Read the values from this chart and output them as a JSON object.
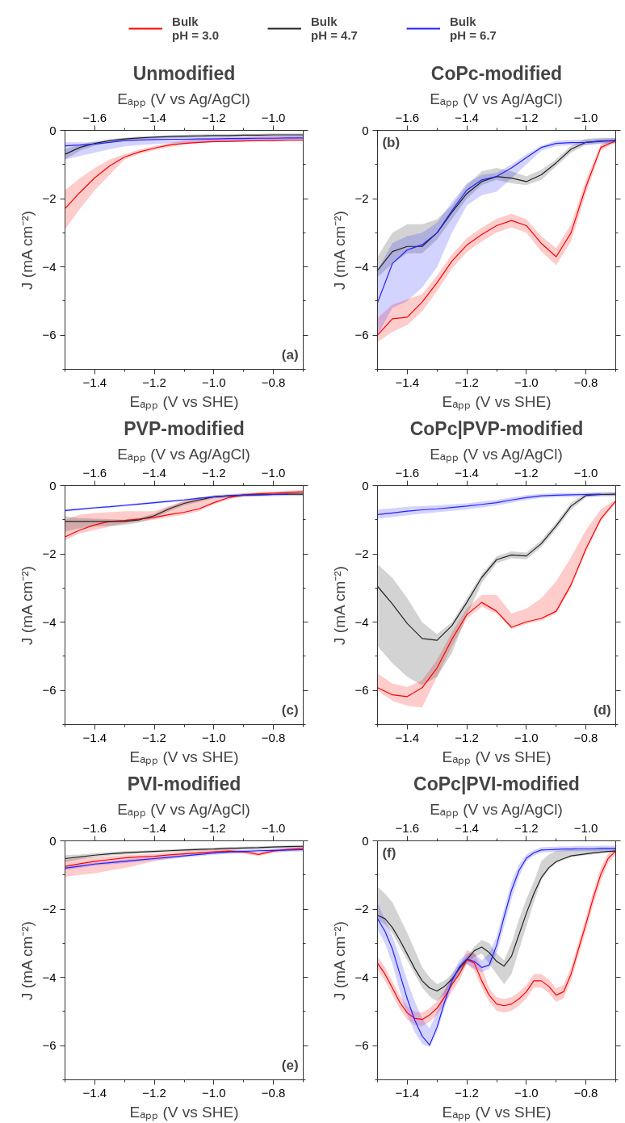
{
  "chart_data": [
    {
      "type": "line",
      "title": "Unmodified",
      "xlabel": "Eₐₚₚ (V vs SHE)",
      "x2label": "Eₐₚₚ (V vs Ag/AgCl)",
      "ylabel": "J (mA cm⁻²)",
      "annotations": [
        "(a)"
      ],
      "legend": "top",
      "xlim": [
        -1.5,
        -0.7
      ],
      "xticks": [
        {
          "value": -1.4,
          "label": "−1.4"
        },
        {
          "value": -1.2,
          "label": "−1.2"
        },
        {
          "value": -1.0,
          "label": "−1.0"
        },
        {
          "value": -0.8,
          "label": "−0.8"
        }
      ],
      "x2lim": [
        -1.7,
        -0.9
      ],
      "x2ticks": [
        {
          "value": -1.6,
          "label": "−1.6"
        },
        {
          "value": -1.4,
          "label": "−1.4"
        },
        {
          "value": -1.2,
          "label": "−1.2"
        },
        {
          "value": -1.0,
          "label": "−1.0"
        }
      ],
      "ylim": [
        -7,
        0
      ],
      "yticks": [
        {
          "value": -6,
          "label": "−6"
        },
        {
          "value": -4,
          "label": "−4"
        },
        {
          "value": -2,
          "label": "−2"
        },
        0
      ],
      "x": [
        -1.5,
        -1.45,
        -1.4,
        -1.35,
        -1.3,
        -1.25,
        -1.2,
        -1.15,
        -1.1,
        -1.05,
        -1.0,
        -0.95,
        -0.9,
        -0.85,
        -0.8,
        -0.75,
        -0.7
      ],
      "series": [
        {
          "name": "Bulk\npH = 3.0",
          "color": "#ff0000",
          "values": [
            -2.29,
            -1.82,
            -1.39,
            -1.04,
            -0.78,
            -0.63,
            -0.52,
            -0.43,
            -0.38,
            -0.35,
            -0.33,
            -0.32,
            -0.31,
            -0.3,
            -0.3,
            -0.29,
            -0.29
          ],
          "lower": [
            -2.9,
            -2.3,
            -1.75,
            -1.3,
            -0.85,
            -0.7,
            -0.58,
            -0.49,
            -0.42,
            -0.37,
            -0.34,
            -0.33,
            -0.32,
            -0.31,
            -0.3,
            -0.3,
            -0.29
          ],
          "upper": [
            -1.75,
            -1.4,
            -1.1,
            -0.85,
            -0.7,
            -0.56,
            -0.46,
            -0.37,
            -0.3,
            -0.25,
            -0.22,
            -0.21,
            -0.2,
            -0.19,
            -0.18,
            -0.18,
            -0.17
          ]
        },
        {
          "name": "Bulk\npH = 4.7",
          "color": "#222222",
          "values": [
            -0.7,
            -0.5,
            -0.38,
            -0.3,
            -0.25,
            -0.22,
            -0.2,
            -0.18,
            -0.17,
            -0.16,
            -0.15,
            -0.15,
            -0.14,
            -0.14,
            -0.13,
            -0.13,
            -0.13
          ],
          "lower": [
            -0.85,
            -0.6,
            -0.45,
            -0.35,
            -0.3,
            -0.26,
            -0.24,
            -0.22,
            -0.21,
            -0.2,
            -0.19,
            -0.19,
            -0.18,
            -0.18,
            -0.17,
            -0.17,
            -0.17
          ],
          "upper": [
            -0.55,
            -0.42,
            -0.32,
            -0.26,
            -0.21,
            -0.18,
            -0.16,
            -0.14,
            -0.13,
            -0.12,
            -0.11,
            -0.11,
            -0.1,
            -0.1,
            -0.09,
            -0.09,
            -0.09
          ]
        },
        {
          "name": "Bulk\npH = 6.7",
          "color": "#2222ff",
          "values": [
            -0.45,
            -0.43,
            -0.4,
            -0.35,
            -0.3,
            -0.28,
            -0.27,
            -0.26,
            -0.26,
            -0.25,
            -0.25,
            -0.24,
            -0.24,
            -0.23,
            -0.23,
            -0.22,
            -0.22
          ],
          "lower": [
            -0.85,
            -0.75,
            -0.65,
            -0.55,
            -0.47,
            -0.43,
            -0.4,
            -0.38,
            -0.37,
            -0.36,
            -0.35,
            -0.34,
            -0.33,
            -0.32,
            -0.31,
            -0.3,
            -0.3
          ],
          "upper": [
            -0.35,
            -0.35,
            -0.35,
            -0.3,
            -0.25,
            -0.22,
            -0.2,
            -0.19,
            -0.18,
            -0.18,
            -0.18,
            -0.17,
            -0.17,
            -0.16,
            -0.16,
            -0.15,
            -0.15
          ]
        }
      ]
    },
    {
      "type": "line",
      "title": "CoPc-modified",
      "xlabel": "Eₐₚₚ (V vs SHE)",
      "x2label": "Eₐₚₚ (V vs Ag/AgCl)",
      "ylabel": "J (mA cm⁻²)",
      "annotations": [
        "(b)"
      ],
      "xlim": [
        -1.5,
        -0.7
      ],
      "xticks": [
        {
          "value": -1.4,
          "label": "−1.4"
        },
        {
          "value": -1.2,
          "label": "−1.2"
        },
        {
          "value": -1.0,
          "label": "−1.0"
        },
        {
          "value": -0.8,
          "label": "−0.8"
        }
      ],
      "x2lim": [
        -1.7,
        -0.9
      ],
      "x2ticks": [
        {
          "value": -1.6,
          "label": "−1.6"
        },
        {
          "value": -1.4,
          "label": "−1.4"
        },
        {
          "value": -1.2,
          "label": "−1.2"
        },
        {
          "value": -1.0,
          "label": "−1.0"
        }
      ],
      "ylim": [
        -7,
        0
      ],
      "yticks": [
        {
          "value": -6,
          "label": "−6"
        },
        {
          "value": -4,
          "label": "−4"
        },
        {
          "value": -2,
          "label": "−2"
        },
        0
      ],
      "x": [
        -1.5,
        -1.45,
        -1.4,
        -1.35,
        -1.3,
        -1.25,
        -1.2,
        -1.15,
        -1.1,
        -1.05,
        -1.0,
        -0.95,
        -0.9,
        -0.85,
        -0.8,
        -0.75,
        -0.7
      ],
      "series": [
        {
          "color": "#ff0000",
          "values": [
            -6.0,
            -5.52,
            -5.47,
            -5.03,
            -4.46,
            -3.83,
            -3.36,
            -3.05,
            -2.79,
            -2.64,
            -2.79,
            -3.31,
            -3.7,
            -3.0,
            -1.65,
            -0.5,
            -0.3
          ],
          "lower": [
            -6.2,
            -5.9,
            -5.7,
            -5.3,
            -4.7,
            -4.05,
            -3.56,
            -3.25,
            -2.99,
            -2.84,
            -3.0,
            -3.55,
            -3.95,
            -3.25,
            -1.85,
            -0.6,
            -0.35
          ],
          "upper": [
            -5.5,
            -5.1,
            -4.95,
            -4.8,
            -4.25,
            -3.63,
            -3.16,
            -2.85,
            -2.59,
            -2.44,
            -2.6,
            -3.1,
            -3.45,
            -2.75,
            -1.45,
            -0.4,
            -0.25
          ]
        },
        {
          "color": "#222222",
          "values": [
            -4.1,
            -3.55,
            -3.4,
            -3.4,
            -3.0,
            -2.4,
            -1.85,
            -1.5,
            -1.35,
            -1.4,
            -1.5,
            -1.3,
            -0.95,
            -0.55,
            -0.35,
            -0.31,
            -0.3
          ],
          "lower": [
            -4.3,
            -3.9,
            -3.6,
            -3.6,
            -3.2,
            -2.6,
            -2.0,
            -1.6,
            -1.45,
            -1.55,
            -1.6,
            -1.45,
            -1.05,
            -0.65,
            -0.42,
            -0.38,
            -0.37
          ],
          "upper": [
            -3.7,
            -3.0,
            -2.75,
            -2.75,
            -2.6,
            -2.2,
            -1.6,
            -1.2,
            -1.1,
            -1.2,
            -1.35,
            -1.15,
            -0.85,
            -0.45,
            -0.25,
            -0.22,
            -0.22
          ]
        },
        {
          "color": "#2222ff",
          "values": [
            -5.05,
            -3.9,
            -3.5,
            -3.35,
            -3.0,
            -2.35,
            -1.75,
            -1.45,
            -1.35,
            -1.1,
            -0.8,
            -0.5,
            -0.38,
            -0.36,
            -0.35,
            -0.32,
            -0.3
          ],
          "lower": [
            -6.0,
            -5.2,
            -5.0,
            -4.6,
            -4.0,
            -3.0,
            -2.2,
            -1.9,
            -1.8,
            -1.4,
            -1.0,
            -0.6,
            -0.46,
            -0.44,
            -0.43,
            -0.4,
            -0.38
          ],
          "upper": [
            -4.1,
            -3.3,
            -3.1,
            -3.0,
            -2.7,
            -2.1,
            -1.55,
            -1.3,
            -1.25,
            -1.0,
            -0.7,
            -0.45,
            -0.3,
            -0.28,
            -0.27,
            -0.24,
            -0.22
          ]
        }
      ]
    },
    {
      "type": "line",
      "title": "PVP-modified",
      "xlabel": "Eₐₚₚ (V vs SHE)",
      "x2label": "Eₐₚₚ (V vs Ag/AgCl)",
      "ylabel": "J (mA cm⁻²)",
      "annotations": [
        "(c)"
      ],
      "xlim": [
        -1.5,
        -0.7
      ],
      "xticks": [
        {
          "value": -1.4,
          "label": "−1.4"
        },
        {
          "value": -1.2,
          "label": "−1.2"
        },
        {
          "value": -1.0,
          "label": "−1.0"
        },
        {
          "value": -0.8,
          "label": "−0.8"
        }
      ],
      "x2lim": [
        -1.7,
        -0.9
      ],
      "x2ticks": [
        {
          "value": -1.6,
          "label": "−1.6"
        },
        {
          "value": -1.4,
          "label": "−1.4"
        },
        {
          "value": -1.2,
          "label": "−1.2"
        },
        {
          "value": -1.0,
          "label": "−1.0"
        }
      ],
      "ylim": [
        -7,
        0
      ],
      "yticks": [
        {
          "value": -6,
          "label": "−6"
        },
        {
          "value": -4,
          "label": "−4"
        },
        {
          "value": -2,
          "label": "−2"
        },
        0
      ],
      "x": [
        -1.5,
        -1.45,
        -1.4,
        -1.35,
        -1.3,
        -1.25,
        -1.2,
        -1.15,
        -1.1,
        -1.05,
        -1.0,
        -0.95,
        -0.9,
        -0.85,
        -0.8,
        -0.75,
        -0.7
      ],
      "series": [
        {
          "color": "#ff0000",
          "values": [
            -1.5,
            -1.3,
            -1.15,
            -1.05,
            -1.02,
            -0.98,
            -0.93,
            -0.85,
            -0.78,
            -0.68,
            -0.5,
            -0.35,
            -0.27,
            -0.24,
            -0.22,
            -0.2,
            -0.18
          ],
          "lower": [
            -1.6,
            -1.4,
            -1.3,
            -1.2,
            -1.1,
            -1.05,
            -1.0,
            -0.92,
            -0.85,
            -0.75,
            -0.55,
            -0.4,
            -0.32,
            -0.29,
            -0.27,
            -0.25,
            -0.23
          ],
          "upper": [
            -1.0,
            -0.85,
            -0.8,
            -0.78,
            -0.75,
            -0.75,
            -0.75,
            -0.6,
            -0.45,
            -0.35,
            -0.3,
            -0.28,
            -0.22,
            -0.19,
            -0.17,
            -0.15,
            -0.13
          ]
        },
        {
          "color": "#222222",
          "values": [
            -1.05,
            -1.05,
            -1.05,
            -1.05,
            -1.05,
            -1.0,
            -0.88,
            -0.68,
            -0.52,
            -0.42,
            -0.33,
            -0.3,
            -0.28,
            -0.27,
            -0.26,
            -0.25,
            -0.25
          ],
          "lower": [
            -1.35,
            -1.25,
            -1.2,
            -1.18,
            -1.15,
            -1.08,
            -0.95,
            -0.75,
            -0.58,
            -0.48,
            -0.38,
            -0.35,
            -0.33,
            -0.32,
            -0.31,
            -0.3,
            -0.3
          ],
          "upper": [
            -0.9,
            -0.95,
            -0.97,
            -0.98,
            -1.0,
            -0.94,
            -0.82,
            -0.62,
            -0.46,
            -0.37,
            -0.28,
            -0.25,
            -0.23,
            -0.22,
            -0.21,
            -0.2,
            -0.2
          ]
        },
        {
          "color": "#2222ff",
          "values": [
            -0.73,
            -0.69,
            -0.65,
            -0.62,
            -0.58,
            -0.54,
            -0.5,
            -0.46,
            -0.42,
            -0.37,
            -0.33,
            -0.3,
            -0.28,
            -0.27,
            -0.26,
            -0.25,
            null
          ],
          "lower": [
            -0.76,
            -0.72,
            -0.68,
            -0.65,
            -0.61,
            -0.57,
            -0.53,
            -0.49,
            -0.45,
            -0.4,
            -0.36,
            -0.33,
            -0.31,
            -0.3,
            -0.29,
            -0.28,
            -0.28
          ],
          "upper": [
            -0.7,
            -0.66,
            -0.62,
            -0.59,
            -0.55,
            -0.51,
            -0.47,
            -0.43,
            -0.39,
            -0.34,
            -0.3,
            -0.27,
            -0.25,
            -0.24,
            -0.23,
            -0.22,
            -0.22
          ]
        }
      ]
    },
    {
      "type": "line",
      "title": "CoPc|PVP-modified",
      "xlabel": "Eₐₚₚ (V vs SHE)",
      "x2label": "Eₐₚₚ (V vs Ag/AgCl)",
      "ylabel": "J (mA cm⁻²)",
      "annotations": [
        "(d)"
      ],
      "xlim": [
        -1.5,
        -0.7
      ],
      "xticks": [
        {
          "value": -1.4,
          "label": "−1.4"
        },
        {
          "value": -1.2,
          "label": "−1.2"
        },
        {
          "value": -1.0,
          "label": "−1.0"
        },
        {
          "value": -0.8,
          "label": "−0.8"
        }
      ],
      "x2lim": [
        -1.7,
        -0.9
      ],
      "x2ticks": [
        {
          "value": -1.6,
          "label": "−1.6"
        },
        {
          "value": -1.4,
          "label": "−1.4"
        },
        {
          "value": -1.2,
          "label": "−1.2"
        },
        {
          "value": -1.0,
          "label": "−1.0"
        }
      ],
      "ylim": [
        -7,
        0
      ],
      "yticks": [
        {
          "value": -6,
          "label": "−6"
        },
        {
          "value": -4,
          "label": "−4"
        },
        {
          "value": -2,
          "label": "−2"
        },
        0
      ],
      "x": [
        -1.5,
        -1.45,
        -1.4,
        -1.35,
        -1.3,
        -1.25,
        -1.2,
        -1.15,
        -1.1,
        -1.05,
        -1.0,
        -0.95,
        -0.9,
        -0.85,
        -0.8,
        -0.75,
        -0.7
      ],
      "series": [
        {
          "color": "#ff0000",
          "values": [
            -5.92,
            -6.13,
            -6.18,
            -5.92,
            -5.34,
            -4.5,
            -3.78,
            -3.42,
            -3.68,
            -4.15,
            -3.99,
            -3.89,
            -3.68,
            -2.9,
            -1.85,
            -0.97,
            -0.45
          ],
          "lower": [
            -6.0,
            -6.3,
            -6.45,
            -6.5,
            -5.6,
            -4.7,
            -3.9,
            -3.55,
            -3.75,
            -4.2,
            -4.05,
            -3.95,
            -3.75,
            -3.0,
            -1.95,
            -1.05,
            -0.5
          ],
          "upper": [
            -5.5,
            -5.8,
            -5.9,
            -5.7,
            -5.1,
            -4.3,
            -3.6,
            -3.2,
            -3.2,
            -3.75,
            -3.6,
            -3.3,
            -2.8,
            -2.1,
            -1.3,
            -0.7,
            -0.4
          ]
        },
        {
          "color": "#222222",
          "values": [
            -2.95,
            -3.47,
            -4.04,
            -4.48,
            -4.53,
            -4.1,
            -3.42,
            -2.69,
            -2.17,
            -2.03,
            -2.06,
            -1.7,
            -1.18,
            -0.6,
            -0.29,
            -0.26,
            -0.25
          ],
          "lower": [
            -4.7,
            -5.2,
            -5.6,
            -5.85,
            -5.6,
            -4.9,
            -3.8,
            -2.85,
            -2.27,
            -2.13,
            -2.16,
            -1.8,
            -1.28,
            -0.7,
            -0.35,
            -0.31,
            -0.3
          ],
          "upper": [
            -2.3,
            -2.7,
            -3.3,
            -4.0,
            -4.35,
            -4.0,
            -3.3,
            -2.6,
            -2.07,
            -1.93,
            -1.96,
            -1.6,
            -1.08,
            -0.5,
            -0.23,
            -0.21,
            -0.2
          ]
        },
        {
          "color": "#2222ff",
          "values": [
            -0.85,
            -0.8,
            -0.75,
            -0.71,
            -0.68,
            -0.64,
            -0.6,
            -0.55,
            -0.5,
            -0.42,
            -0.35,
            -0.3,
            -0.28,
            -0.27,
            -0.26,
            -0.25,
            null
          ],
          "lower": [
            -0.97,
            -0.92,
            -0.87,
            -0.82,
            -0.78,
            -0.74,
            -0.7,
            -0.64,
            -0.58,
            -0.5,
            -0.42,
            -0.36,
            -0.34,
            -0.33,
            -0.32,
            -0.31,
            -0.31
          ],
          "upper": [
            -0.7,
            -0.66,
            -0.62,
            -0.6,
            -0.58,
            -0.55,
            -0.52,
            -0.47,
            -0.42,
            -0.34,
            -0.28,
            -0.24,
            -0.22,
            -0.21,
            -0.2,
            -0.19,
            -0.19
          ]
        }
      ]
    },
    {
      "type": "line",
      "title": "PVI-modified",
      "xlabel": "Eₐₚₚ (V vs SHE)",
      "x2label": "Eₐₚₚ (V vs Ag/AgCl)",
      "ylabel": "J (mA cm⁻²)",
      "annotations": [
        "(e)"
      ],
      "xlim": [
        -1.5,
        -0.7
      ],
      "xticks": [
        {
          "value": -1.4,
          "label": "−1.4"
        },
        {
          "value": -1.2,
          "label": "−1.2"
        },
        {
          "value": -1.0,
          "label": "−1.0"
        },
        {
          "value": -0.8,
          "label": "−0.8"
        }
      ],
      "x2lim": [
        -1.7,
        -0.9
      ],
      "x2ticks": [
        {
          "value": -1.6,
          "label": "−1.6"
        },
        {
          "value": -1.4,
          "label": "−1.4"
        },
        {
          "value": -1.2,
          "label": "−1.2"
        },
        {
          "value": -1.0,
          "label": "−1.0"
        }
      ],
      "ylim": [
        -7,
        0
      ],
      "yticks": [
        {
          "value": -6,
          "label": "−6"
        },
        {
          "value": -4,
          "label": "−4"
        },
        {
          "value": -2,
          "label": "−2"
        },
        0
      ],
      "x": [
        -1.5,
        -1.45,
        -1.4,
        -1.35,
        -1.3,
        -1.25,
        -1.2,
        -1.15,
        -1.1,
        -1.05,
        -1.0,
        -0.95,
        -0.9,
        -0.85,
        -0.8,
        -0.75,
        -0.7
      ],
      "series": [
        {
          "color": "#ff0000",
          "values": [
            -0.75,
            -0.67,
            -0.6,
            -0.55,
            -0.5,
            -0.47,
            -0.45,
            -0.41,
            -0.38,
            -0.35,
            -0.32,
            -0.3,
            -0.32,
            -0.4,
            -0.3,
            -0.25,
            -0.22
          ],
          "lower": [
            -1.05,
            -1.0,
            -0.95,
            -0.87,
            -0.8,
            -0.7,
            -0.6,
            -0.52,
            -0.45,
            -0.4,
            -0.37,
            -0.35,
            -0.37,
            -0.45,
            -0.35,
            -0.3,
            -0.27
          ],
          "upper": [
            -0.55,
            -0.5,
            -0.48,
            -0.45,
            -0.42,
            -0.4,
            -0.38,
            -0.34,
            -0.3,
            -0.28,
            -0.26,
            -0.25,
            -0.27,
            -0.35,
            -0.25,
            -0.2,
            -0.17
          ]
        },
        {
          "color": "#222222",
          "values": [
            -0.52,
            -0.47,
            -0.42,
            -0.38,
            -0.35,
            -0.33,
            -0.31,
            -0.29,
            -0.27,
            -0.25,
            -0.24,
            -0.22,
            -0.21,
            -0.2,
            -0.18,
            -0.17,
            -0.16
          ],
          "lower": [
            -0.62,
            -0.54,
            -0.48,
            -0.43,
            -0.4,
            -0.37,
            -0.35,
            -0.33,
            -0.31,
            -0.29,
            -0.28,
            -0.26,
            -0.25,
            -0.24,
            -0.22,
            -0.21,
            -0.2
          ],
          "upper": [
            -0.42,
            -0.4,
            -0.36,
            -0.33,
            -0.3,
            -0.29,
            -0.27,
            -0.25,
            -0.23,
            -0.21,
            -0.2,
            -0.18,
            -0.17,
            -0.16,
            -0.14,
            -0.13,
            -0.12
          ]
        },
        {
          "color": "#2222ff",
          "values": [
            -0.8,
            -0.74,
            -0.68,
            -0.64,
            -0.6,
            -0.56,
            -0.52,
            -0.48,
            -0.44,
            -0.4,
            -0.36,
            -0.33,
            -0.31,
            -0.29,
            -0.28,
            -0.27,
            -0.26
          ],
          "lower": [
            -0.85,
            -0.79,
            -0.73,
            -0.69,
            -0.65,
            -0.61,
            -0.57,
            -0.53,
            -0.49,
            -0.45,
            -0.41,
            -0.38,
            -0.36,
            -0.34,
            -0.33,
            -0.32,
            -0.31
          ],
          "upper": [
            -0.75,
            -0.69,
            -0.63,
            -0.59,
            -0.55,
            -0.51,
            -0.47,
            -0.43,
            -0.39,
            -0.35,
            -0.31,
            -0.28,
            -0.26,
            -0.24,
            -0.23,
            -0.22,
            -0.21
          ]
        }
      ]
    },
    {
      "type": "line",
      "title": "CoPc|PVI-modified",
      "xlabel": "Eₐₚₚ (V vs SHE)",
      "x2label": "Eₐₚₚ (V vs Ag/AgCl)",
      "ylabel": "J (mA cm⁻²)",
      "annotations": [
        "(f)"
      ],
      "xlim": [
        -1.5,
        -0.7
      ],
      "xticks": [
        {
          "value": -1.4,
          "label": "−1.4"
        },
        {
          "value": -1.2,
          "label": "−1.2"
        },
        {
          "value": -1.0,
          "label": "−1.0"
        },
        {
          "value": -0.8,
          "label": "−0.8"
        }
      ],
      "x2lim": [
        -1.7,
        -0.9
      ],
      "x2ticks": [
        {
          "value": -1.6,
          "label": "−1.6"
        },
        {
          "value": -1.4,
          "label": "−1.4"
        },
        {
          "value": -1.2,
          "label": "−1.2"
        },
        {
          "value": -1.0,
          "label": "−1.0"
        }
      ],
      "ylim": [
        -7,
        0
      ],
      "yticks": [
        {
          "value": -6,
          "label": "−6"
        },
        {
          "value": -4,
          "label": "−4"
        },
        {
          "value": -2,
          "label": "−2"
        },
        0
      ],
      "x": [
        -1.5,
        -1.475,
        -1.45,
        -1.425,
        -1.4,
        -1.375,
        -1.35,
        -1.325,
        -1.3,
        -1.275,
        -1.25,
        -1.225,
        -1.2,
        -1.175,
        -1.15,
        -1.125,
        -1.1,
        -1.075,
        -1.05,
        -1.025,
        -1.0,
        -0.975,
        -0.95,
        -0.925,
        -0.9,
        -0.875,
        -0.85,
        -0.825,
        -0.8,
        -0.775,
        -0.75,
        -0.725,
        -0.7
      ],
      "series": [
        {
          "color": "#ff0000",
          "values": [
            -3.58,
            -3.9,
            -4.31,
            -4.73,
            -5.04,
            -5.2,
            -5.23,
            -5.1,
            -4.9,
            -4.58,
            -4.21,
            -3.9,
            -3.48,
            -3.58,
            -4.1,
            -4.52,
            -4.78,
            -4.83,
            -4.78,
            -4.63,
            -4.42,
            -4.1,
            -4.1,
            -4.26,
            -4.52,
            -4.42,
            -3.9,
            -3.17,
            -2.44,
            -1.66,
            -0.98,
            -0.51,
            -0.3
          ],
          "lower": [
            -3.78,
            -4.1,
            -4.51,
            -4.93,
            -5.24,
            -5.4,
            -5.43,
            -5.3,
            -5.1,
            -4.78,
            -4.41,
            -4.1,
            -3.6,
            -3.8,
            -4.3,
            -4.72,
            -4.98,
            -5.03,
            -4.98,
            -4.83,
            -4.62,
            -4.3,
            -4.3,
            -4.46,
            -4.72,
            -4.62,
            -4.1,
            -3.37,
            -2.64,
            -1.86,
            -1.18,
            -0.65,
            -0.4
          ],
          "upper": [
            -3.38,
            -3.7,
            -4.11,
            -4.53,
            -4.84,
            -5.0,
            -5.03,
            -4.9,
            -4.7,
            -4.38,
            -4.01,
            -3.7,
            -3.2,
            -3.3,
            -3.7,
            -4.32,
            -4.58,
            -4.63,
            -4.58,
            -4.43,
            -4.22,
            -3.9,
            -3.9,
            -4.06,
            -4.32,
            -4.22,
            -3.7,
            -2.97,
            -2.24,
            -1.46,
            -0.78,
            -0.37,
            -0.2
          ]
        },
        {
          "color": "#222222",
          "values": [
            -2.18,
            -2.28,
            -2.54,
            -2.91,
            -3.32,
            -3.74,
            -4.1,
            -4.31,
            -4.4,
            -4.26,
            -4.05,
            -3.74,
            -3.48,
            -3.22,
            -3.11,
            -3.27,
            -3.53,
            -3.67,
            -3.38,
            -2.75,
            -2.12,
            -1.55,
            -1.08,
            -0.79,
            -0.61,
            -0.52,
            -0.44,
            -0.41,
            -0.38,
            -0.35,
            -0.33,
            -0.31,
            -0.3
          ],
          "lower": [
            -2.3,
            -2.45,
            -2.7,
            -3.1,
            -3.5,
            -3.9,
            -4.3,
            -4.55,
            -4.7,
            -4.5,
            -4.2,
            -3.9,
            -3.6,
            -3.4,
            -3.3,
            -3.6,
            -3.9,
            -4.2,
            -3.9,
            -3.2,
            -2.5,
            -1.8,
            -1.15,
            -0.85,
            -0.65,
            -0.56,
            -0.48,
            -0.45,
            -0.42,
            -0.39,
            -0.37,
            -0.35,
            -0.34
          ],
          "upper": [
            -1.35,
            -1.55,
            -1.8,
            -2.25,
            -2.7,
            -3.2,
            -3.7,
            -4.0,
            -4.2,
            -4.1,
            -3.9,
            -3.6,
            -3.4,
            -3.1,
            -2.9,
            -3.0,
            -3.3,
            -3.5,
            -3.0,
            -2.3,
            -1.7,
            -1.2,
            -0.6,
            -0.4,
            -0.3,
            -0.27,
            -0.25,
            -0.24,
            -0.23,
            -0.23,
            -0.22,
            -0.22,
            -0.22
          ]
        },
        {
          "color": "#2222ff",
          "values": [
            -2.28,
            -2.65,
            -3.17,
            -3.9,
            -4.63,
            -5.25,
            -5.72,
            -5.98,
            -5.46,
            -4.73,
            -4.1,
            -3.69,
            -3.46,
            -3.53,
            -3.71,
            -3.64,
            -3.06,
            -2.23,
            -1.45,
            -0.87,
            -0.51,
            -0.35,
            -0.27,
            -0.26,
            -0.25,
            -0.24,
            -0.24,
            -0.23,
            -0.23,
            -0.23,
            -0.22,
            -0.22,
            -0.22
          ],
          "lower": [
            -2.6,
            -3.0,
            -3.6,
            -4.4,
            -5.1,
            -5.6,
            -5.95,
            -6.05,
            -5.6,
            -4.9,
            -4.25,
            -3.8,
            -3.6,
            -3.75,
            -3.85,
            -3.75,
            -3.3,
            -2.5,
            -1.7,
            -1.05,
            -0.6,
            -0.43,
            -0.35,
            -0.33,
            -0.32,
            -0.31,
            -0.31,
            -0.3,
            -0.3,
            -0.3,
            -0.29,
            -0.29,
            -0.29
          ],
          "upper": [
            -1.8,
            -2.3,
            -2.8,
            -3.4,
            -4.1,
            -4.7,
            -5.2,
            -5.5,
            -5.0,
            -4.4,
            -3.9,
            -3.5,
            -3.3,
            -3.3,
            -3.5,
            -3.3,
            -2.8,
            -2.0,
            -1.2,
            -0.7,
            -0.4,
            -0.27,
            -0.19,
            -0.18,
            -0.17,
            -0.16,
            -0.16,
            -0.15,
            -0.15,
            -0.15,
            -0.14,
            -0.14,
            -0.14
          ]
        }
      ]
    }
  ]
}
